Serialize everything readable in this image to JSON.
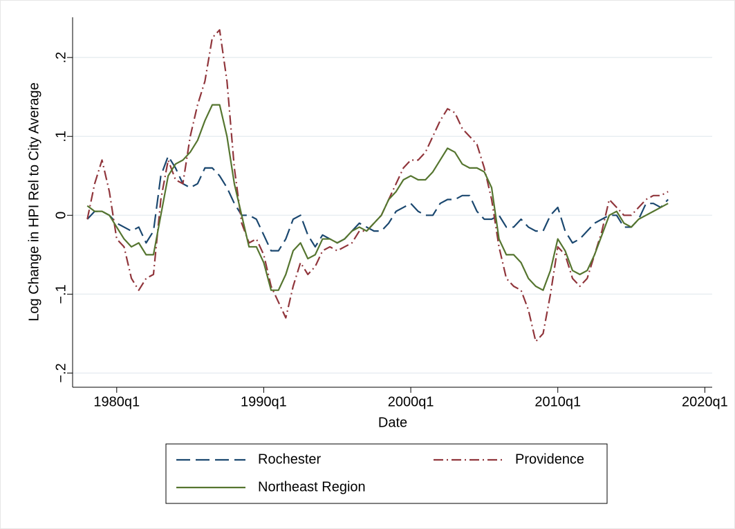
{
  "chart_data": {
    "type": "line",
    "ylabel": "Log Change in HPI Rel to City Average",
    "xlabel": "Date",
    "x": [
      "1978q1",
      "1978q3",
      "1979q1",
      "1979q3",
      "1980q1",
      "1980q3",
      "1981q1",
      "1981q3",
      "1982q1",
      "1982q3",
      "1983q1",
      "1983q3",
      "1984q1",
      "1984q3",
      "1985q1",
      "1985q3",
      "1986q1",
      "1986q3",
      "1987q1",
      "1987q3",
      "1988q1",
      "1988q3",
      "1989q1",
      "1989q3",
      "1990q1",
      "1990q3",
      "1991q1",
      "1991q3",
      "1992q1",
      "1992q3",
      "1993q1",
      "1993q3",
      "1994q1",
      "1994q3",
      "1995q1",
      "1995q3",
      "1996q1",
      "1996q3",
      "1997q1",
      "1997q3",
      "1998q1",
      "1998q3",
      "1999q1",
      "1999q3",
      "2000q1",
      "2000q3",
      "2001q1",
      "2001q3",
      "2002q1",
      "2002q3",
      "2003q1",
      "2003q3",
      "2004q1",
      "2004q3",
      "2005q1",
      "2005q3",
      "2006q1",
      "2006q3",
      "2007q1",
      "2007q3",
      "2008q1",
      "2008q3",
      "2009q1",
      "2009q3",
      "2010q1",
      "2010q3",
      "2011q1",
      "2011q3",
      "2012q1",
      "2012q3",
      "2013q1",
      "2013q3",
      "2014q1",
      "2014q3",
      "2015q1",
      "2015q3",
      "2016q1",
      "2016q3",
      "2017q1",
      "2017q3"
    ],
    "series": [
      {
        "name": "Rochester",
        "color": "#1a476f",
        "dash": "20,8",
        "values": [
          -0.005,
          0.005,
          0.005,
          0.0,
          -0.01,
          -0.015,
          -0.02,
          -0.015,
          -0.035,
          -0.02,
          0.05,
          0.075,
          0.06,
          0.04,
          0.035,
          0.04,
          0.06,
          0.06,
          0.05,
          0.035,
          0.015,
          0.0,
          0.0,
          -0.005,
          -0.025,
          -0.045,
          -0.045,
          -0.03,
          -0.005,
          0.0,
          -0.025,
          -0.04,
          -0.025,
          -0.03,
          -0.035,
          -0.03,
          -0.02,
          -0.01,
          -0.015,
          -0.02,
          -0.02,
          -0.01,
          0.005,
          0.01,
          0.015,
          0.005,
          0.0,
          0.0,
          0.015,
          0.02,
          0.02,
          0.025,
          0.025,
          0.005,
          -0.005,
          -0.005,
          0.0,
          -0.015,
          -0.015,
          -0.005,
          -0.015,
          -0.02,
          -0.02,
          0.0,
          0.01,
          -0.02,
          -0.035,
          -0.03,
          -0.02,
          -0.01,
          -0.005,
          0.0,
          0.0,
          -0.015,
          -0.015,
          -0.005,
          0.015,
          0.015,
          0.01,
          0.02
        ]
      },
      {
        "name": "Providence",
        "color": "#90353b",
        "dash": "14,5,2,5",
        "values": [
          -0.005,
          0.04,
          0.07,
          0.03,
          -0.03,
          -0.04,
          -0.08,
          -0.095,
          -0.08,
          -0.075,
          0.02,
          0.07,
          0.045,
          0.04,
          0.1,
          0.14,
          0.17,
          0.225,
          0.235,
          0.17,
          0.06,
          -0.01,
          -0.035,
          -0.03,
          -0.05,
          -0.09,
          -0.11,
          -0.13,
          -0.09,
          -0.06,
          -0.075,
          -0.065,
          -0.045,
          -0.04,
          -0.045,
          -0.04,
          -0.035,
          -0.02,
          -0.02,
          -0.01,
          0.0,
          0.02,
          0.04,
          0.06,
          0.07,
          0.07,
          0.08,
          0.1,
          0.12,
          0.135,
          0.13,
          0.11,
          0.1,
          0.09,
          0.06,
          0.02,
          -0.04,
          -0.08,
          -0.09,
          -0.095,
          -0.12,
          -0.16,
          -0.15,
          -0.1,
          -0.04,
          -0.05,
          -0.08,
          -0.09,
          -0.08,
          -0.05,
          -0.02,
          0.02,
          0.01,
          0.0,
          0.0,
          0.01,
          0.02,
          0.025,
          0.025,
          0.03
        ]
      },
      {
        "name": "Northeast Region",
        "color": "#55752f",
        "dash": "none",
        "values": [
          0.012,
          0.005,
          0.005,
          0.0,
          -0.015,
          -0.03,
          -0.04,
          -0.035,
          -0.05,
          -0.05,
          0.0,
          0.05,
          0.065,
          0.07,
          0.08,
          0.095,
          0.12,
          0.14,
          0.14,
          0.1,
          0.04,
          0.0,
          -0.04,
          -0.04,
          -0.06,
          -0.095,
          -0.095,
          -0.075,
          -0.045,
          -0.035,
          -0.055,
          -0.05,
          -0.03,
          -0.03,
          -0.035,
          -0.03,
          -0.02,
          -0.015,
          -0.02,
          -0.01,
          0.0,
          0.02,
          0.03,
          0.045,
          0.05,
          0.045,
          0.045,
          0.055,
          0.07,
          0.085,
          0.08,
          0.065,
          0.06,
          0.06,
          0.055,
          0.035,
          -0.03,
          -0.05,
          -0.05,
          -0.06,
          -0.08,
          -0.09,
          -0.095,
          -0.07,
          -0.03,
          -0.045,
          -0.07,
          -0.075,
          -0.07,
          -0.05,
          -0.025,
          0.0,
          0.005,
          -0.01,
          -0.015,
          -0.005,
          0.0,
          0.005,
          0.01,
          0.015
        ]
      }
    ],
    "xlim": [
      "1977q1",
      "2020q3"
    ],
    "xticks": [
      "1980q1",
      "1990q1",
      "2000q1",
      "2010q1",
      "2020q1"
    ],
    "ylim": [
      -0.218,
      0.251
    ],
    "yticks": [
      {
        "value": -0.2,
        "label": "−.2"
      },
      {
        "value": -0.1,
        "label": "−.1"
      },
      0,
      {
        "value": 0.1,
        "label": ".1"
      },
      {
        "value": 0.2,
        "label": ".2"
      }
    ],
    "grid": true,
    "legend": "bottom"
  }
}
